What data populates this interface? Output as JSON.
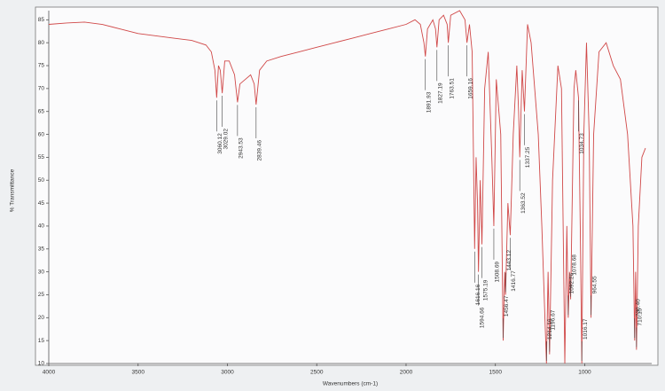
{
  "chart_data": {
    "type": "line",
    "xlabel": "Wavenumbers (cm-1)",
    "ylabel": "% Transmittance",
    "xlim": [
      4000,
      625
    ],
    "ylim": [
      10,
      87
    ],
    "xticks": [
      4000,
      3500,
      3000,
      2500,
      2000,
      1500,
      1000
    ],
    "yticks": [
      10,
      15,
      20,
      25,
      30,
      35,
      40,
      45,
      50,
      55,
      60,
      65,
      70,
      75,
      80,
      85
    ],
    "x": [
      4000,
      3900,
      3800,
      3700,
      3600,
      3500,
      3400,
      3300,
      3200,
      3120,
      3090,
      3070,
      3060.12,
      3050,
      3040,
      3029.02,
      3015,
      2990,
      2960,
      2943.53,
      2930,
      2900,
      2870,
      2850,
      2839.46,
      2820,
      2780,
      2700,
      2600,
      2500,
      2400,
      2300,
      2200,
      2100,
      2000,
      1950,
      1920,
      1900,
      1891.93,
      1880,
      1850,
      1835,
      1827.19,
      1815,
      1790,
      1770,
      1763.51,
      1750,
      1700,
      1670,
      1659.16,
      1645,
      1630,
      1616.16,
      1608,
      1600,
      1594.66,
      1585,
      1575.19,
      1560,
      1540,
      1520,
      1508.69,
      1495,
      1470,
      1456.47,
      1448,
      1443.12,
      1430,
      1416.77,
      1400,
      1380,
      1370,
      1363.52,
      1350,
      1337.25,
      1320,
      1300,
      1280,
      1260,
      1240,
      1214.16,
      1205,
      1196.67,
      1180,
      1150,
      1130,
      1111.36,
      1100,
      1092.26,
      1085,
      1078.68,
      1060,
      1050,
      1034.73,
      1025,
      1016.17,
      1005,
      990,
      975,
      964.55,
      950,
      920,
      880,
      840,
      800,
      760,
      730,
      720.4,
      715,
      710.15,
      700,
      680,
      660
    ],
    "series": [
      {
        "color": "#d04848",
        "values": [
          84,
          84.3,
          84.5,
          84,
          83,
          82,
          81.5,
          81,
          80.5,
          79.5,
          78,
          74,
          68,
          75,
          74,
          69,
          76,
          76,
          73,
          67,
          71,
          72,
          73,
          71,
          66.5,
          74,
          76,
          77,
          78,
          79,
          80,
          81,
          82,
          83,
          84,
          85,
          84,
          80,
          77,
          83,
          85,
          83,
          79,
          85,
          86,
          84,
          80,
          86,
          87,
          85,
          80,
          84,
          78,
          35,
          55,
          45,
          30,
          50,
          36,
          70,
          78,
          55,
          40,
          72,
          60,
          15,
          30,
          25,
          45,
          38,
          60,
          75,
          65,
          55,
          74,
          65,
          84,
          80,
          70,
          60,
          40,
          10,
          30,
          12,
          50,
          75,
          70,
          10,
          40,
          20,
          30,
          24,
          70,
          74,
          68,
          40,
          10,
          60,
          80,
          60,
          20,
          60,
          78,
          80,
          75,
          72,
          60,
          40,
          15,
          30,
          13,
          40,
          55,
          57
        ]
      }
    ],
    "peaks": [
      3060.12,
      3029.02,
      2943.53,
      2839.46,
      1891.93,
      1827.19,
      1763.51,
      1659.16,
      1616.16,
      1594.66,
      1575.19,
      1508.69,
      1456.47,
      1443.12,
      1416.77,
      1363.52,
      1337.25,
      1214.16,
      1196.67,
      1092.26,
      1078.68,
      1034.73,
      1016.17,
      964.55,
      {
        "value": 720.4,
        "label": "720.40"
      },
      710.15
    ],
    "grid": false
  }
}
